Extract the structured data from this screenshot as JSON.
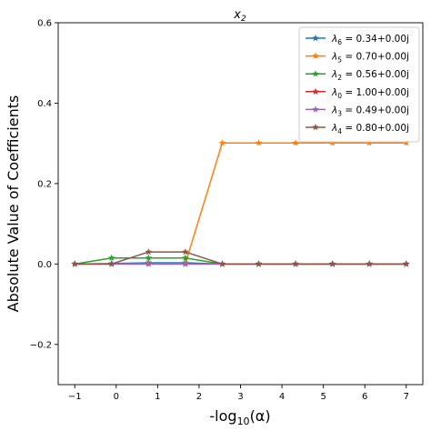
{
  "chart_data": {
    "type": "line",
    "title": "x_2",
    "title_parts": {
      "base": "x",
      "sub": "2"
    },
    "xlabel": "-log10(α)",
    "xlabel_parts": {
      "pre": "-log",
      "sub": "10",
      "post": "(α)"
    },
    "ylabel": "Absolute Value of Coefficients",
    "xlim": [
      -1.4,
      7.4
    ],
    "ylim": [
      -0.3,
      0.6
    ],
    "xticks": [
      -1,
      0,
      1,
      2,
      3,
      4,
      5,
      6,
      7
    ],
    "xtick_labels": [
      "−1",
      "0",
      "1",
      "2",
      "3",
      "4",
      "5",
      "6",
      "7"
    ],
    "yticks": [
      -0.2,
      0.0,
      0.2,
      0.4,
      0.6
    ],
    "ytick_labels": [
      "−0.2",
      "0.0",
      "0.2",
      "0.4",
      "0.6"
    ],
    "grid": false,
    "legend_position": "upper-right",
    "marker": "star",
    "x": [
      -1.0,
      -0.11,
      0.78,
      1.67,
      2.56,
      3.44,
      4.33,
      5.22,
      6.11,
      7.0
    ],
    "series": [
      {
        "name": "λ6 = 0.34+0.00j",
        "label_parts": {
          "sym": "λ",
          "sub": "6",
          "rest": " = 0.34+0.00j"
        },
        "color": "#1f77b4",
        "values": [
          0,
          0.001,
          0.003,
          0.003,
          0,
          0,
          0,
          0,
          0,
          0
        ]
      },
      {
        "name": "λ5 = 0.70+0.00j",
        "label_parts": {
          "sym": "λ",
          "sub": "5",
          "rest": " = 0.70+0.00j"
        },
        "color": "#ff7f0e",
        "values": [
          0,
          0,
          0.001,
          0.001,
          0.301,
          0.301,
          0.301,
          0.301,
          0.301,
          0.301
        ]
      },
      {
        "name": "λ2 = 0.56+0.00j",
        "label_parts": {
          "sym": "λ",
          "sub": "2",
          "rest": " = 0.56+0.00j"
        },
        "color": "#2ca02c",
        "values": [
          0,
          0.015,
          0.015,
          0.015,
          0,
          0,
          0,
          0,
          0,
          0
        ]
      },
      {
        "name": "λ0 = 1.00+0.00j",
        "label_parts": {
          "sym": "λ",
          "sub": "0",
          "rest": " = 1.00+0.00j"
        },
        "color": "#d62728",
        "values": [
          0,
          0,
          0,
          0,
          0,
          0,
          0,
          0,
          0,
          0
        ]
      },
      {
        "name": "λ3 = 0.49+0.00j",
        "label_parts": {
          "sym": "λ",
          "sub": "3",
          "rest": " = 0.49+0.00j"
        },
        "color": "#9467bd",
        "values": [
          0,
          0,
          0,
          0,
          0,
          0,
          0,
          0,
          0,
          0
        ]
      },
      {
        "name": "λ4 = 0.80+0.00j",
        "label_parts": {
          "sym": "λ",
          "sub": "4",
          "rest": " = 0.80+0.00j"
        },
        "color": "#8c564b",
        "values": [
          0,
          0,
          0.03,
          0.03,
          0,
          0,
          0,
          0,
          0,
          0
        ]
      }
    ]
  }
}
